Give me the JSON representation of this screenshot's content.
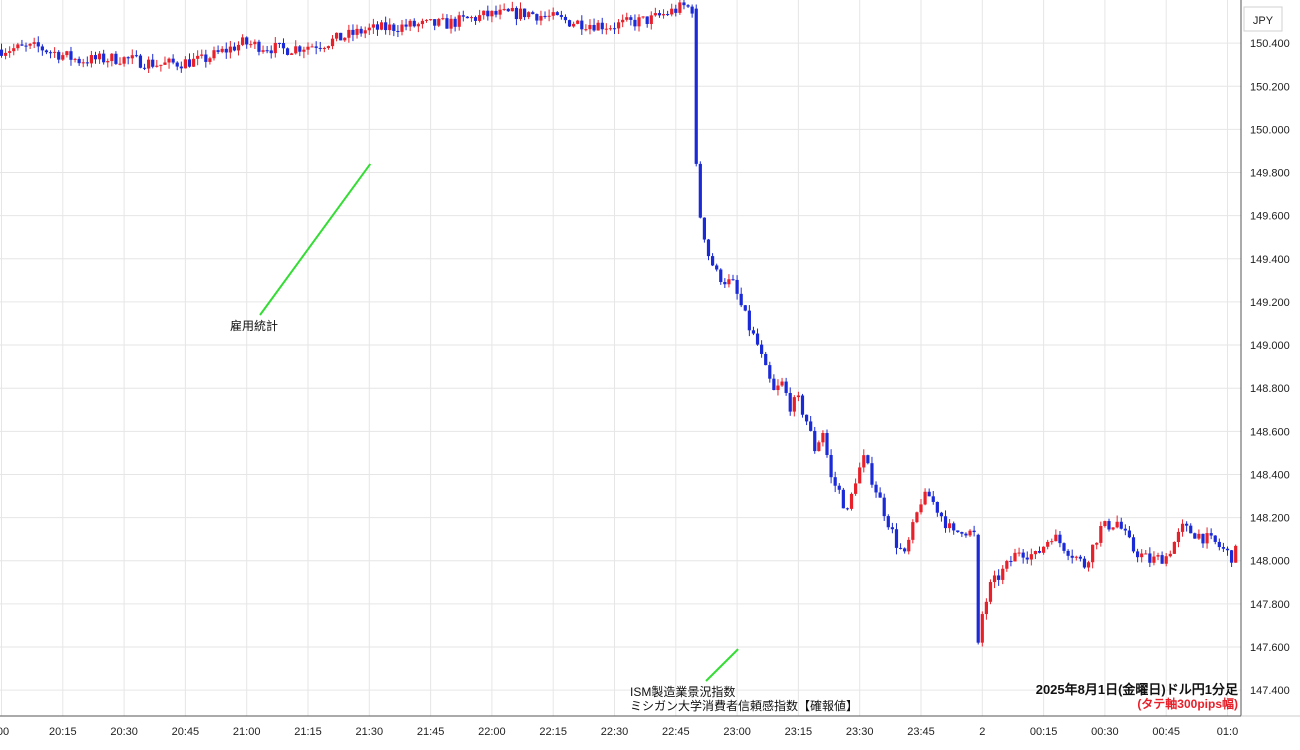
{
  "chart_data": {
    "type": "candlestick",
    "currency_label": "JPY",
    "title_line1": "2025年8月1日(金曜日)ドル円1分足",
    "title_line2": "(タテ軸300pips幅)",
    "y_ticks": [
      "150.400",
      "150.200",
      "150.000",
      "149.800",
      "149.600",
      "149.400",
      "149.200",
      "149.000",
      "148.800",
      "148.600",
      "148.400",
      "148.200",
      "148.000",
      "147.800",
      "147.600",
      "147.400"
    ],
    "y_tick_values": [
      150.4,
      150.2,
      150.0,
      149.8,
      149.6,
      149.4,
      149.2,
      149.0,
      148.8,
      148.6,
      148.4,
      148.2,
      148.0,
      147.8,
      147.6,
      147.4
    ],
    "ylim": [
      147.28,
      150.6
    ],
    "x_ticks": [
      ":00",
      "20:15",
      "20:30",
      "20:45",
      "21:00",
      "21:15",
      "21:30",
      "21:45",
      "22:00",
      "22:15",
      "22:30",
      "22:45",
      "23:00",
      "23:15",
      "23:30",
      "23:45",
      "2",
      "00:15",
      "00:30",
      "00:45",
      "01:0"
    ],
    "annotations": [
      {
        "text": "雇用統計",
        "time": "21:30",
        "price": 149.84
      },
      {
        "text_line1": "ISM製造業景況指数",
        "text_line2": "ミシガン大学消費者信頼感指数【確報値】",
        "time": "23:00",
        "price": 147.59
      }
    ],
    "colors": {
      "up": "#e8202a",
      "down": "#1a2ad6",
      "annotation": "#33dd33",
      "title2": "#e8202a",
      "grid": "#e6e6e6"
    },
    "path_points": [
      [
        0,
        150.37
      ],
      [
        10,
        150.38
      ],
      [
        20,
        150.32
      ],
      [
        30,
        150.33
      ],
      [
        40,
        150.3
      ],
      [
        50,
        150.32
      ],
      [
        60,
        150.4
      ],
      [
        70,
        150.37
      ],
      [
        80,
        150.4
      ],
      [
        90,
        150.46
      ],
      [
        100,
        150.48
      ],
      [
        110,
        150.49
      ],
      [
        120,
        150.53
      ],
      [
        130,
        150.54
      ],
      [
        140,
        150.5
      ],
      [
        150,
        150.48
      ],
      [
        160,
        150.51
      ],
      [
        168,
        150.57
      ],
      [
        170,
        150.56
      ],
      [
        171,
        149.84
      ],
      [
        172,
        149.6
      ],
      [
        174,
        149.42
      ],
      [
        176,
        149.33
      ],
      [
        178,
        149.3
      ],
      [
        180,
        149.28
      ],
      [
        182,
        149.18
      ],
      [
        184,
        149.08
      ],
      [
        186,
        149.0
      ],
      [
        188,
        148.88
      ],
      [
        190,
        148.78
      ],
      [
        192,
        148.82
      ],
      [
        194,
        148.72
      ],
      [
        196,
        148.74
      ],
      [
        198,
        148.65
      ],
      [
        200,
        148.52
      ],
      [
        202,
        148.6
      ],
      [
        204,
        148.38
      ],
      [
        206,
        148.32
      ],
      [
        208,
        148.22
      ],
      [
        210,
        148.38
      ],
      [
        212,
        148.47
      ],
      [
        214,
        148.38
      ],
      [
        216,
        148.28
      ],
      [
        218,
        148.18
      ],
      [
        220,
        148.08
      ],
      [
        222,
        148.02
      ],
      [
        224,
        148.15
      ],
      [
        226,
        148.28
      ],
      [
        228,
        148.3
      ],
      [
        230,
        148.24
      ],
      [
        232,
        148.18
      ],
      [
        234,
        148.12
      ],
      [
        236,
        148.15
      ],
      [
        239,
        148.12
      ],
      [
        240,
        147.62
      ],
      [
        241,
        147.75
      ],
      [
        243,
        147.88
      ],
      [
        246,
        147.95
      ],
      [
        250,
        148.05
      ],
      [
        254,
        148.02
      ],
      [
        258,
        148.12
      ],
      [
        262,
        148.05
      ],
      [
        266,
        147.98
      ],
      [
        270,
        148.15
      ],
      [
        274,
        148.18
      ],
      [
        278,
        148.05
      ],
      [
        282,
        148.0
      ],
      [
        286,
        148.02
      ],
      [
        290,
        148.15
      ],
      [
        294,
        148.12
      ],
      [
        298,
        148.08
      ],
      [
        302,
        148.02
      ],
      [
        306,
        148.1
      ],
      [
        310,
        148.05
      ],
      [
        314,
        147.98
      ],
      [
        318,
        148.05
      ],
      [
        322,
        148.12
      ],
      [
        326,
        148.1
      ],
      [
        330,
        148.02
      ],
      [
        334,
        147.98
      ],
      [
        338,
        148.05
      ],
      [
        342,
        148.12
      ],
      [
        346,
        148.08
      ],
      [
        350,
        148.02
      ],
      [
        354,
        148.08
      ],
      [
        360,
        148.05
      ]
    ]
  }
}
